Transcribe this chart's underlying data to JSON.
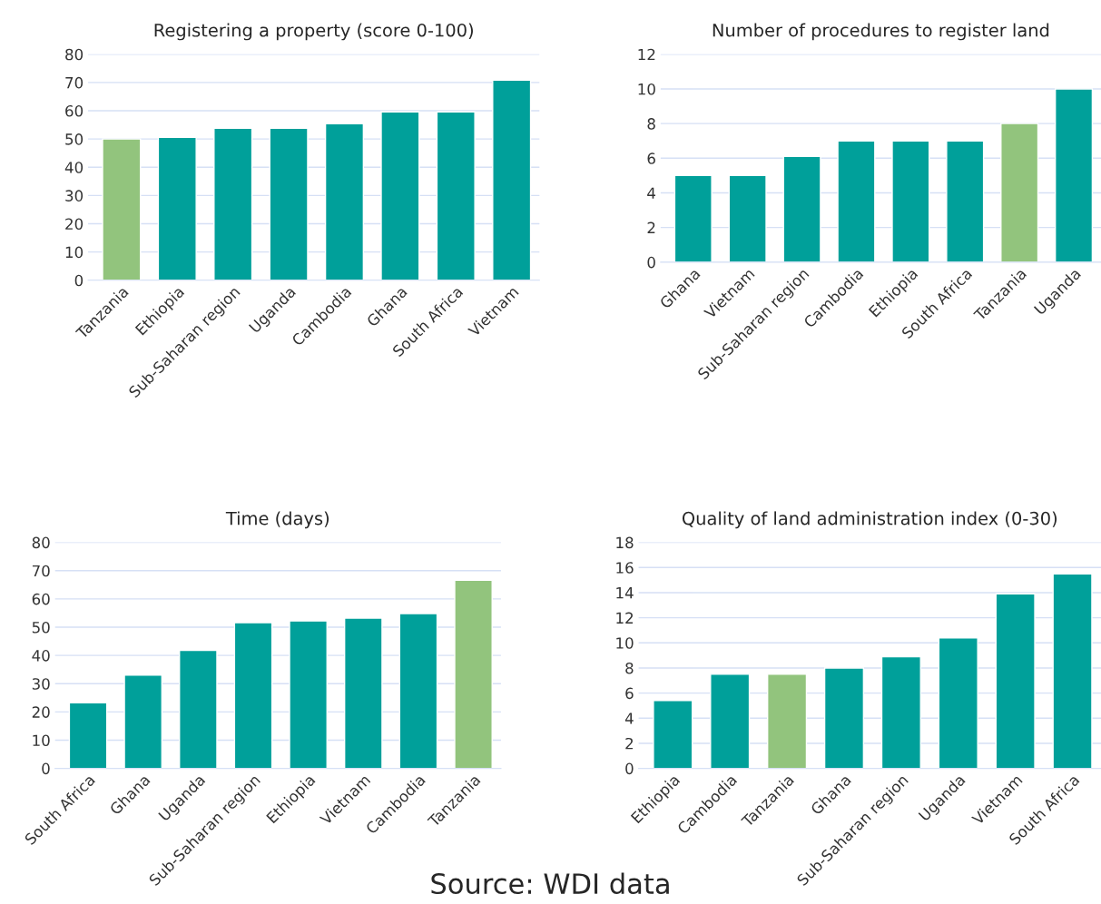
{
  "chart_data": [
    {
      "type": "bar",
      "title": "Registering a property (score 0-100)",
      "categories": [
        "Tanzania",
        "Ethiopia",
        "Sub-Saharan region",
        "Uganda",
        "Cambodia",
        "Ghana",
        "South Africa",
        "Vietnam"
      ],
      "values": [
        50,
        50.6,
        53.8,
        53.8,
        55.4,
        59.6,
        59.6,
        70.8
      ],
      "colors": [
        "#92c47d",
        "#00a09a",
        "#00a09a",
        "#00a09a",
        "#00a09a",
        "#00a09a",
        "#00a09a",
        "#00a09a"
      ],
      "ylim": [
        0,
        80
      ],
      "yticks": [
        0,
        10,
        20,
        30,
        40,
        50,
        60,
        70,
        80
      ],
      "grid": "y"
    },
    {
      "type": "bar",
      "title": "Number of procedures to register land",
      "categories": [
        "Ghana",
        "Vietnam",
        "Sub-Saharan region",
        "Cambodia",
        "Ethiopia",
        "South Africa",
        "Tanzania",
        "Uganda"
      ],
      "values": [
        5,
        5,
        6.1,
        7,
        7,
        7,
        8,
        10
      ],
      "colors": [
        "#00a09a",
        "#00a09a",
        "#00a09a",
        "#00a09a",
        "#00a09a",
        "#00a09a",
        "#92c47d",
        "#00a09a"
      ],
      "ylim": [
        0,
        12
      ],
      "yticks": [
        0,
        2,
        4,
        6,
        8,
        10,
        12
      ],
      "grid": "y"
    },
    {
      "type": "bar",
      "title": "Time (days)",
      "categories": [
        "South Africa",
        "Ghana",
        "Uganda",
        "Sub-Saharan region",
        "Ethiopia",
        "Vietnam",
        "Cambodia",
        "Tanzania"
      ],
      "values": [
        23.2,
        33,
        41.8,
        51.6,
        52.2,
        53.2,
        54.8,
        66.6
      ],
      "colors": [
        "#00a09a",
        "#00a09a",
        "#00a09a",
        "#00a09a",
        "#00a09a",
        "#00a09a",
        "#00a09a",
        "#92c47d"
      ],
      "ylim": [
        0,
        80
      ],
      "yticks": [
        0,
        10,
        20,
        30,
        40,
        50,
        60,
        70,
        80
      ],
      "grid": "y"
    },
    {
      "type": "bar",
      "title": "Quality of land administration index (0-30)",
      "categories": [
        "Ethiopia",
        "Cambodia",
        "Tanzania",
        "Ghana",
        "Sub-Saharan region",
        "Uganda",
        "Vietnam",
        "South Africa"
      ],
      "values": [
        5.4,
        7.5,
        7.5,
        8,
        8.9,
        10.4,
        13.9,
        15.5
      ],
      "colors": [
        "#00a09a",
        "#00a09a",
        "#92c47d",
        "#00a09a",
        "#00a09a",
        "#00a09a",
        "#00a09a",
        "#00a09a"
      ],
      "ylim": [
        0,
        18
      ],
      "yticks": [
        0,
        2,
        4,
        6,
        8,
        10,
        12,
        14,
        16,
        18
      ],
      "grid": "y",
      "annotations": [
        "Source: WDI data"
      ]
    }
  ]
}
